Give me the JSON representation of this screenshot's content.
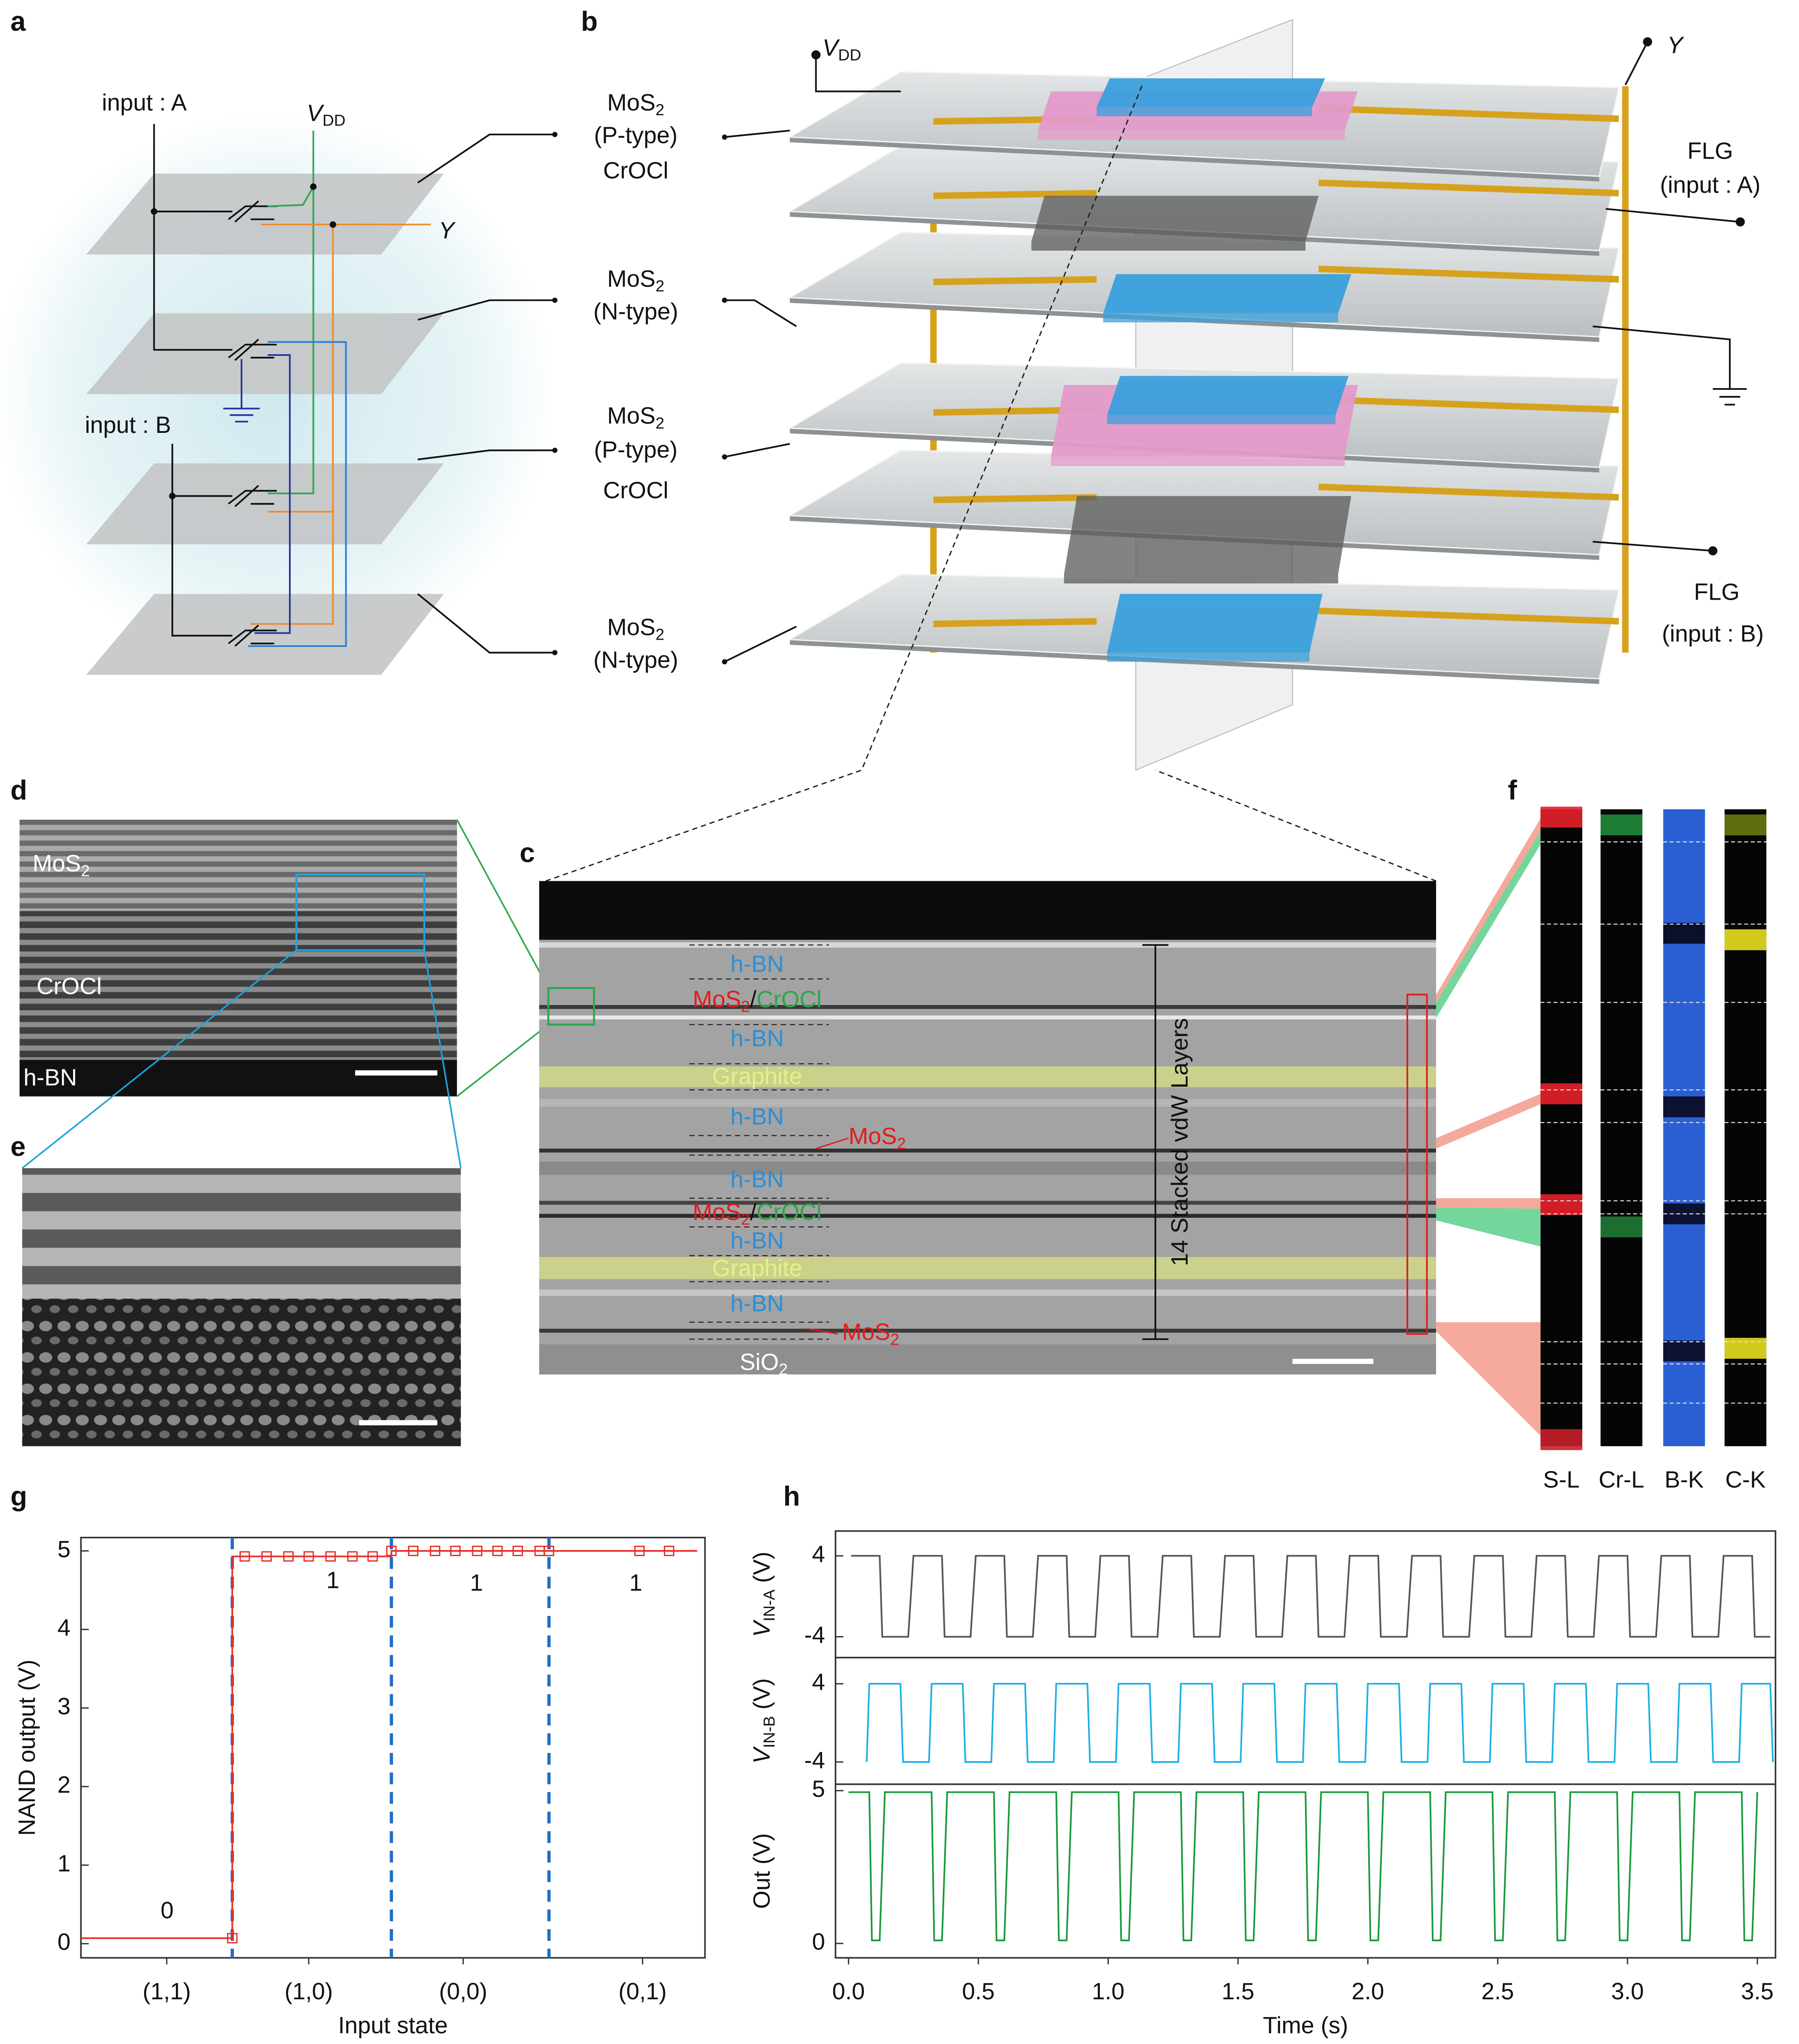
{
  "panel_labels": [
    "a",
    "b",
    "c",
    "d",
    "e",
    "f",
    "g",
    "h"
  ],
  "panel_a": {
    "input_a": "input : A",
    "vdd": {
      "main": "V",
      "sub": "DD"
    },
    "y": "Y",
    "input_b": "input : B"
  },
  "panel_b": {
    "vdd": {
      "main": "V",
      "sub": "DD"
    },
    "y": "Y",
    "left_labels": [
      {
        "main": "MoS",
        "sub": "2"
      },
      "(P-type)",
      "CrOCl",
      {
        "main": "MoS",
        "sub": "2"
      },
      "(N-type)",
      {
        "main": "MoS",
        "sub": "2"
      },
      "(P-type)",
      "CrOCl",
      {
        "main": "MoS",
        "sub": "2"
      },
      "(N-type)"
    ],
    "right_labels": [
      "FLG",
      "(input : A)",
      "FLG",
      "(input : B)"
    ]
  },
  "panel_c": {
    "layers": [
      "h-BN",
      [
        {
          "main": "MoS",
          "sub": "2"
        },
        "/",
        "CrOCl"
      ],
      "h-BN",
      "Graphite",
      "h-BN",
      {
        "main": "MoS",
        "sub": "2"
      },
      "h-BN",
      [
        {
          "main": "MoS",
          "sub": "2"
        },
        "/",
        "CrOCl"
      ],
      "h-BN",
      "Graphite",
      "h-BN",
      {
        "main": "MoS",
        "sub": "2"
      },
      {
        "main": "SiO",
        "sub": "2"
      }
    ],
    "thickness_label": "14 Stacked vdW Layers"
  },
  "panel_d": {
    "labels": [
      {
        "main": "MoS",
        "sub": "2"
      },
      "CrOCl",
      "h-BN"
    ]
  },
  "panel_f": {
    "channels": [
      "S-L",
      "Cr-L",
      "B-K",
      "C-K"
    ]
  },
  "chart_data": [
    {
      "type": "line",
      "xlabel": "Input state",
      "ylabel": "NAND output (V)",
      "xlim": [
        0,
        4
      ],
      "xticks": [
        {
          "value": 0.55,
          "label": "(1,1)"
        },
        {
          "value": 1.46,
          "label": "(1,0)"
        },
        {
          "value": 2.45,
          "label": "(0,0)"
        },
        {
          "value": 3.6,
          "label": "(0,1)"
        }
      ],
      "ylim": [
        -0.18,
        5.17
      ],
      "yticks": [
        0,
        1,
        2,
        3,
        4,
        5
      ],
      "dividers": [
        0.97,
        1.99,
        3.0
      ],
      "divider_color": "#1f6fc5",
      "series": [
        {
          "color": "#e8302a",
          "markers": false,
          "x": [
            0.0,
            0.97,
            0.97,
            1.99,
            1.99,
            3.95
          ],
          "values": [
            0.07,
            0.07,
            4.93,
            4.93,
            5.0,
            5.0
          ]
        },
        {
          "color": "#e8302a",
          "markers": true,
          "x": [
            0.97,
            1.05,
            1.19,
            1.33,
            1.46,
            1.6,
            1.74,
            1.87,
            1.99,
            2.13,
            2.27,
            2.4,
            2.54,
            2.67,
            2.8,
            2.94,
            3.0,
            3.58,
            3.77
          ],
          "values": [
            0.07,
            4.93,
            4.93,
            4.93,
            4.93,
            4.93,
            4.93,
            4.93,
            5.0,
            5.0,
            5.0,
            5.0,
            5.0,
            5.0,
            5.0,
            5.0,
            5.0,
            5.0,
            5.0
          ]
        }
      ],
      "annotations": [
        "0",
        "1",
        "1",
        "1"
      ]
    },
    {
      "type": "line",
      "ylabel": {
        "main": "V",
        "sub": "IN-A",
        "rest": "(V)"
      },
      "xlim": [
        -0.05,
        3.57
      ],
      "ylim": [
        -6.06,
        6.45
      ],
      "yticks": [
        4,
        -4
      ],
      "series": [
        {
          "color": "#555555",
          "markers": false,
          "x": [
            0.01,
            0.12,
            0.13,
            0.23,
            0.25,
            0.36,
            0.37,
            0.47,
            0.49,
            0.6,
            0.61,
            0.71,
            0.73,
            0.84,
            0.85,
            0.95,
            0.97,
            1.08,
            1.09,
            1.19,
            1.21,
            1.32,
            1.33,
            1.43,
            1.45,
            1.56,
            1.57,
            1.67,
            1.69,
            1.8,
            1.81,
            1.91,
            1.93,
            2.04,
            2.05,
            2.15,
            2.17,
            2.28,
            2.29,
            2.39,
            2.41,
            2.52,
            2.53,
            2.63,
            2.65,
            2.76,
            2.77,
            2.87,
            2.89,
            3.0,
            3.01,
            3.11,
            3.13,
            3.24,
            3.25,
            3.35,
            3.37,
            3.48,
            3.49,
            3.55
          ],
          "values": [
            4,
            4,
            -4,
            -4,
            4,
            4,
            -4,
            -4,
            4,
            4,
            -4,
            -4,
            4,
            4,
            -4,
            -4,
            4,
            4,
            -4,
            -4,
            4,
            4,
            -4,
            -4,
            4,
            4,
            -4,
            -4,
            4,
            4,
            -4,
            -4,
            4,
            4,
            -4,
            -4,
            4,
            4,
            -4,
            -4,
            4,
            4,
            -4,
            -4,
            4,
            4,
            -4,
            -4,
            4,
            4,
            -4,
            -4,
            4,
            4,
            -4,
            -4,
            4,
            4,
            -4,
            -4
          ]
        }
      ]
    },
    {
      "type": "line",
      "ylabel": {
        "main": "V",
        "sub": "IN-B",
        "rest": "(V)"
      },
      "xlim": [
        -0.05,
        3.57
      ],
      "ylim": [
        -6.27,
        6.67
      ],
      "yticks": [
        4,
        -4
      ],
      "series": [
        {
          "color": "#1fb1e6",
          "markers": false,
          "x": [
            0.07,
            0.08,
            0.2,
            0.21,
            0.31,
            0.32,
            0.44,
            0.45,
            0.55,
            0.56,
            0.68,
            0.69,
            0.79,
            0.8,
            0.92,
            0.93,
            1.03,
            1.04,
            1.16,
            1.17,
            1.27,
            1.28,
            1.4,
            1.41,
            1.51,
            1.52,
            1.64,
            1.65,
            1.75,
            1.76,
            1.88,
            1.89,
            1.99,
            2.0,
            2.12,
            2.13,
            2.23,
            2.24,
            2.36,
            2.37,
            2.47,
            2.48,
            2.6,
            2.61,
            2.71,
            2.72,
            2.84,
            2.85,
            2.95,
            2.96,
            3.08,
            3.09,
            3.19,
            3.2,
            3.32,
            3.33,
            3.43,
            3.44,
            3.55,
            3.56
          ],
          "values": [
            -4,
            4,
            4,
            -4,
            -4,
            4,
            4,
            -4,
            -4,
            4,
            4,
            -4,
            -4,
            4,
            4,
            -4,
            -4,
            4,
            4,
            -4,
            -4,
            4,
            4,
            -4,
            -4,
            4,
            4,
            -4,
            -4,
            4,
            4,
            -4,
            -4,
            4,
            4,
            -4,
            -4,
            4,
            4,
            -4,
            -4,
            4,
            4,
            -4,
            -4,
            4,
            4,
            -4,
            -4,
            4,
            4,
            -4,
            -4,
            4,
            4,
            -4,
            -4,
            4,
            4,
            -4
          ]
        }
      ]
    },
    {
      "type": "line",
      "ylabel": "Out (V)",
      "xlabel": "Time (s)",
      "xlim": [
        -0.05,
        3.57
      ],
      "ylim": [
        -0.47,
        5.21
      ],
      "yticks": [
        5,
        0
      ],
      "xticks": [
        {
          "value": 0,
          "label": "0.0"
        },
        0.5,
        {
          "value": 1,
          "label": "1.0"
        },
        1.5,
        {
          "value": 2,
          "label": "2.0"
        },
        2.5,
        {
          "value": 3,
          "label": "3.0"
        },
        3.5
      ],
      "series": [
        {
          "color": "#1a9a3c",
          "markers": false,
          "x": [
            0.0,
            0.08,
            0.09,
            0.12,
            0.14,
            0.32,
            0.33,
            0.36,
            0.38,
            0.56,
            0.57,
            0.6,
            0.62,
            0.8,
            0.81,
            0.84,
            0.86,
            1.04,
            1.05,
            1.08,
            1.1,
            1.28,
            1.29,
            1.32,
            1.34,
            1.52,
            1.53,
            1.56,
            1.58,
            1.76,
            1.77,
            1.8,
            1.82,
            2.0,
            2.01,
            2.04,
            2.06,
            2.24,
            2.25,
            2.28,
            2.3,
            2.48,
            2.49,
            2.52,
            2.54,
            2.72,
            2.73,
            2.76,
            2.78,
            2.96,
            2.97,
            3.0,
            3.02,
            3.2,
            3.21,
            3.24,
            3.26,
            3.44,
            3.45,
            3.48,
            3.5
          ],
          "values": [
            4.95,
            4.95,
            0.1,
            0.1,
            4.95,
            4.95,
            0.1,
            0.1,
            4.95,
            4.95,
            0.1,
            0.1,
            4.95,
            4.95,
            0.1,
            0.1,
            4.95,
            4.95,
            0.1,
            0.1,
            4.95,
            4.95,
            0.1,
            0.1,
            4.95,
            4.95,
            0.1,
            0.1,
            4.95,
            4.95,
            0.1,
            0.1,
            4.95,
            4.95,
            0.1,
            0.1,
            4.95,
            4.95,
            0.1,
            0.1,
            4.95,
            4.95,
            0.1,
            0.1,
            4.95,
            4.95,
            0.1,
            0.1,
            4.95,
            4.95,
            0.1,
            0.1,
            4.95,
            4.95,
            0.1,
            0.1,
            4.95,
            4.95,
            0.1,
            0.1,
            4.95
          ]
        }
      ]
    }
  ]
}
